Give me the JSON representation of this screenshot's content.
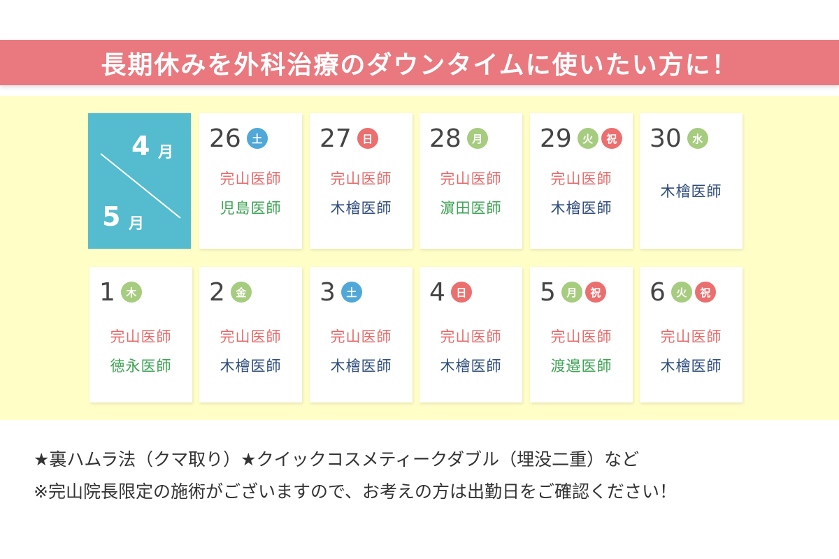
{
  "banner": {
    "title": "長期休みを外科治療のダウンタイムに使いたい方に！"
  },
  "colors": {
    "banner_bg": "#e9797f",
    "calendar_bg": "#fffec6",
    "month_box_bg": "#55bcd0",
    "badge_sat": "#4fa8d8",
    "badge_sun": "#ec6f6f",
    "badge_weekday": "#a6cc7f",
    "badge_holiday": "#ec6f6f",
    "doctor_red": "#e56b6b",
    "doctor_green": "#3ea354",
    "doctor_navy": "#2f4d7c"
  },
  "month_label": {
    "top_num": "4",
    "top_unit": "月",
    "bottom_num": "5",
    "bottom_unit": "月"
  },
  "days": [
    {
      "day": "26",
      "badges": [
        {
          "label": "土",
          "color": "#4fa8d8"
        }
      ],
      "doctors": [
        {
          "name": "完山医師",
          "color": "#e56b6b"
        },
        {
          "name": "児島医師",
          "color": "#3ea354"
        }
      ]
    },
    {
      "day": "27",
      "badges": [
        {
          "label": "日",
          "color": "#ec6f6f"
        }
      ],
      "doctors": [
        {
          "name": "完山医師",
          "color": "#e56b6b"
        },
        {
          "name": "木檜医師",
          "color": "#2f4d7c"
        }
      ]
    },
    {
      "day": "28",
      "badges": [
        {
          "label": "月",
          "color": "#a6cc7f"
        }
      ],
      "doctors": [
        {
          "name": "完山医師",
          "color": "#e56b6b"
        },
        {
          "name": "濵田医師",
          "color": "#3ea354"
        }
      ]
    },
    {
      "day": "29",
      "badges": [
        {
          "label": "火",
          "color": "#a6cc7f"
        },
        {
          "label": "祝",
          "color": "#ec6f6f"
        }
      ],
      "doctors": [
        {
          "name": "完山医師",
          "color": "#e56b6b"
        },
        {
          "name": "木檜医師",
          "color": "#2f4d7c"
        }
      ]
    },
    {
      "day": "30",
      "badges": [
        {
          "label": "水",
          "color": "#a6cc7f"
        }
      ],
      "doctors": [
        {
          "name": "木檜医師",
          "color": "#2f4d7c"
        }
      ]
    },
    {
      "day": "1",
      "badges": [
        {
          "label": "木",
          "color": "#a6cc7f"
        }
      ],
      "doctors": [
        {
          "name": "完山医師",
          "color": "#e56b6b"
        },
        {
          "name": "徳永医師",
          "color": "#3ea354"
        }
      ]
    },
    {
      "day": "2",
      "badges": [
        {
          "label": "金",
          "color": "#a6cc7f"
        }
      ],
      "doctors": [
        {
          "name": "完山医師",
          "color": "#e56b6b"
        },
        {
          "name": "木檜医師",
          "color": "#2f4d7c"
        }
      ]
    },
    {
      "day": "3",
      "badges": [
        {
          "label": "土",
          "color": "#4fa8d8"
        }
      ],
      "doctors": [
        {
          "name": "完山医師",
          "color": "#e56b6b"
        },
        {
          "name": "木檜医師",
          "color": "#2f4d7c"
        }
      ]
    },
    {
      "day": "4",
      "badges": [
        {
          "label": "日",
          "color": "#ec6f6f"
        }
      ],
      "doctors": [
        {
          "name": "完山医師",
          "color": "#e56b6b"
        },
        {
          "name": "木檜医師",
          "color": "#2f4d7c"
        }
      ]
    },
    {
      "day": "5",
      "badges": [
        {
          "label": "月",
          "color": "#a6cc7f"
        },
        {
          "label": "祝",
          "color": "#ec6f6f"
        }
      ],
      "doctors": [
        {
          "name": "完山医師",
          "color": "#e56b6b"
        },
        {
          "name": "渡邉医師",
          "color": "#3ea354"
        }
      ]
    },
    {
      "day": "6",
      "badges": [
        {
          "label": "火",
          "color": "#a6cc7f"
        },
        {
          "label": "祝",
          "color": "#ec6f6f"
        }
      ],
      "doctors": [
        {
          "name": "完山医師",
          "color": "#e56b6b"
        },
        {
          "name": "木檜医師",
          "color": "#2f4d7c"
        }
      ]
    }
  ],
  "notes": {
    "line1": "★裏ハムラ法（クマ取り）★クイックコスメティークダブル（埋没二重）など",
    "line2": "※完山院長限定の施術がございますので、お考えの方は出勤日をご確認ください！"
  }
}
